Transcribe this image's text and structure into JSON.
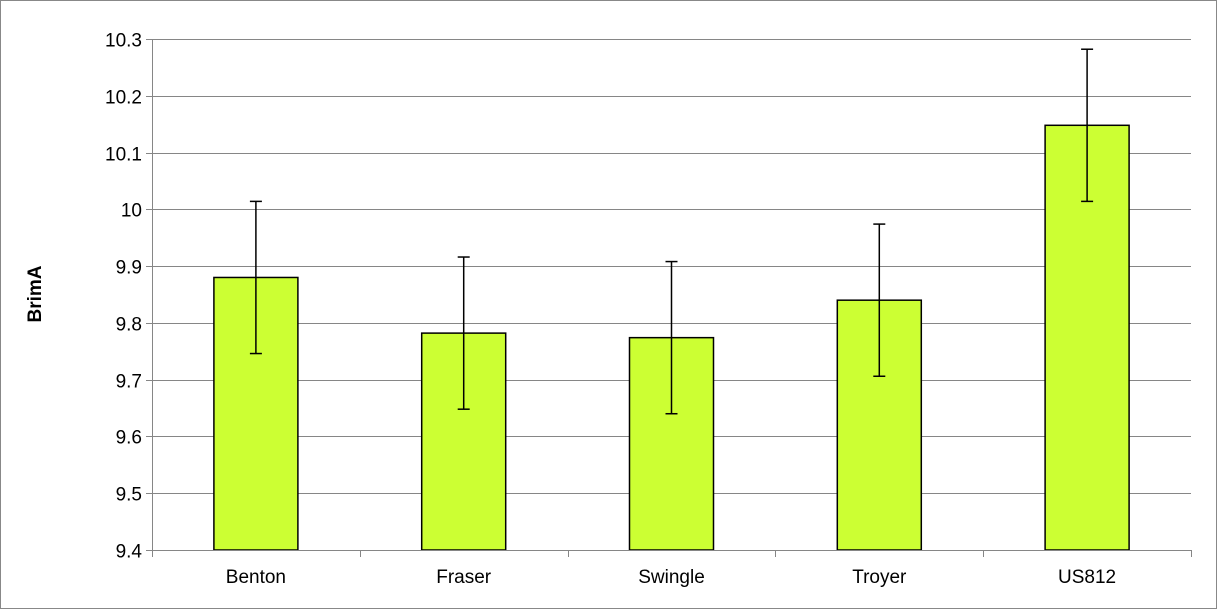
{
  "chart_data": {
    "type": "bar",
    "title": "",
    "xlabel": "",
    "ylabel": "BrimA",
    "ylim": [
      9.4,
      10.3
    ],
    "yticks": [
      "9.4",
      "9.5",
      "9.6",
      "9.7",
      "9.8",
      "9.9",
      "10",
      "10.1",
      "10.2",
      "10.3"
    ],
    "categories": [
      "Benton",
      "Fraser",
      "Swingle",
      "Troyer",
      "US812"
    ],
    "values": [
      9.88,
      9.782,
      9.774,
      9.84,
      10.148
    ],
    "error_low": [
      9.746,
      9.648,
      9.64,
      9.706,
      10.014
    ],
    "error_high": [
      10.014,
      9.916,
      9.908,
      9.974,
      10.282
    ],
    "grid": true,
    "legend": "none",
    "colors": {
      "bar_fill": "#ccff33",
      "bar_stroke": "#000000",
      "grid": "#868686",
      "axis": "#868686",
      "error_bar": "#000000"
    }
  }
}
